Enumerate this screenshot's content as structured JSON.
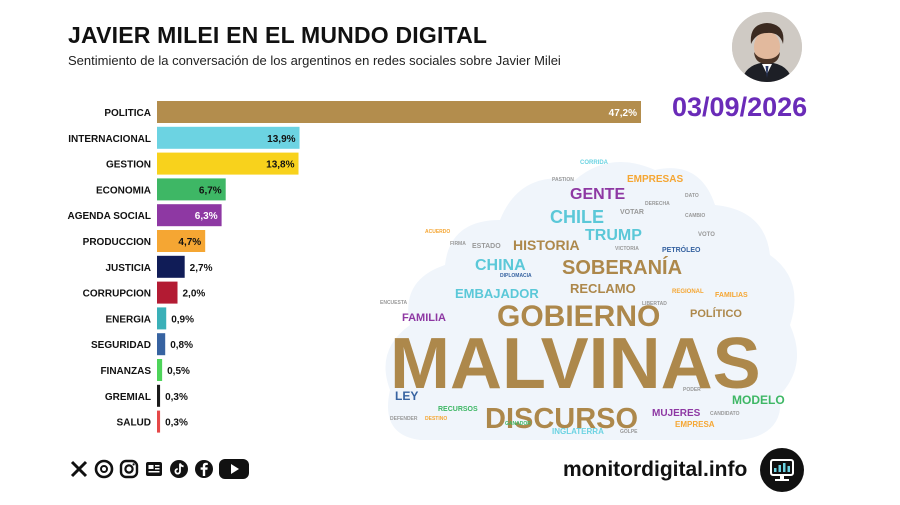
{
  "header": {
    "title": "JAVIER MILEI EN EL MUNDO DIGITAL",
    "subtitle": "Sentimiento de la conversación de los argentinos en redes sociales sobre Javier Milei",
    "date": "03/09/2026"
  },
  "chart_data": {
    "type": "bar",
    "orientation": "horizontal",
    "categories": [
      "POLITICA",
      "INTERNACIONAL",
      "GESTION",
      "ECONOMIA",
      "AGENDA SOCIAL",
      "PRODUCCION",
      "JUSTICIA",
      "CORRUPCION",
      "ENERGIA",
      "SEGURIDAD",
      "FINANZAS",
      "GREMIAL",
      "SALUD"
    ],
    "values": [
      47.2,
      13.9,
      13.8,
      6.7,
      6.3,
      4.7,
      2.7,
      2.0,
      0.9,
      0.8,
      0.5,
      0.3,
      0.3
    ],
    "value_labels": [
      "47,2%",
      "13,9%",
      "13,8%",
      "6,7%",
      "6,3%",
      "4,7%",
      "2,7%",
      "2,0%",
      "0,9%",
      "0,8%",
      "0,5%",
      "0,3%",
      "0,3%"
    ],
    "colors": [
      "#b38d4d",
      "#6cd3e2",
      "#f8d21c",
      "#3eb765",
      "#8e38a3",
      "#f5a633",
      "#101c57",
      "#b31b33",
      "#3ab0b8",
      "#3763a1",
      "#4ed45a",
      "#1a1a1a",
      "#e54848"
    ],
    "value_label_colors": [
      "#ffffff",
      "#111111",
      "#111111",
      "#111111",
      "#ffffff",
      "#111111",
      "#111111",
      "#111111",
      "#111111",
      "#111111",
      "#111111",
      "#111111",
      "#111111"
    ]
  },
  "wordcloud": [
    {
      "text": "MALVINAS",
      "color": "#ad884b",
      "size": 72
    },
    {
      "text": "GOBIERNO",
      "color": "#ad884b",
      "size": 30
    },
    {
      "text": "DISCURSO",
      "color": "#ad884b",
      "size": 29
    },
    {
      "text": "SOBERANÍA",
      "color": "#ad884b",
      "size": 20
    },
    {
      "text": "CHILE",
      "color": "#5bc8d8",
      "size": 18
    },
    {
      "text": "GENTE",
      "color": "#8e38a3",
      "size": 16
    },
    {
      "text": "TRUMP",
      "color": "#5bc8d8",
      "size": 16
    },
    {
      "text": "CHINA",
      "color": "#5bc8d8",
      "size": 16
    },
    {
      "text": "HISTORIA",
      "color": "#ad884b",
      "size": 14
    },
    {
      "text": "RECLAMO",
      "color": "#ad884b",
      "size": 13
    },
    {
      "text": "EMBAJADOR",
      "color": "#5bc8d8",
      "size": 13
    },
    {
      "text": "POLÍTICO",
      "color": "#ad884b",
      "size": 11
    },
    {
      "text": "FAMILIA",
      "color": "#8e38a3",
      "size": 11
    },
    {
      "text": "MODELO",
      "color": "#3eb765",
      "size": 12
    },
    {
      "text": "LEY",
      "color": "#3763a1",
      "size": 12
    },
    {
      "text": "MUJERES",
      "color": "#8e38a3",
      "size": 10
    },
    {
      "text": "EMPRESAS",
      "color": "#f5a633",
      "size": 10
    },
    {
      "text": "INGLATERRA",
      "color": "#6cd3e2",
      "size": 8
    },
    {
      "text": "EMPRESA",
      "color": "#f5a633",
      "size": 8
    },
    {
      "text": "RECURSOS",
      "color": "#3eb765",
      "size": 7
    },
    {
      "text": "PETRÓLEO",
      "color": "#3763a1",
      "size": 7
    },
    {
      "text": "VOTAR",
      "color": "#999999",
      "size": 7
    },
    {
      "text": "ESTADO",
      "color": "#999999",
      "size": 7
    },
    {
      "text": "FAMILIAS",
      "color": "#f5a633",
      "size": 7
    },
    {
      "text": "CORRIDA",
      "color": "#6cd3e2",
      "size": 6
    },
    {
      "text": "PASTION",
      "color": "#999999",
      "size": 5
    },
    {
      "text": "VOTO",
      "color": "#999999",
      "size": 6
    },
    {
      "text": "ENCUESTA",
      "color": "#999999",
      "size": 5
    },
    {
      "text": "PODER",
      "color": "#999999",
      "size": 5
    },
    {
      "text": "DEFENDER",
      "color": "#999999",
      "size": 5
    },
    {
      "text": "REGIONAL",
      "color": "#f5a633",
      "size": 6
    },
    {
      "text": "GOLPE",
      "color": "#999999",
      "size": 5
    },
    {
      "text": "CANDIDATO",
      "color": "#999999",
      "size": 5
    },
    {
      "text": "DERECHA",
      "color": "#999999",
      "size": 5
    },
    {
      "text": "CAMBIO",
      "color": "#999999",
      "size": 5
    },
    {
      "text": "VICTORIA",
      "color": "#999999",
      "size": 5
    },
    {
      "text": "DATO",
      "color": "#999999",
      "size": 5
    },
    {
      "text": "DESTINO",
      "color": "#f5a633",
      "size": 5
    },
    {
      "text": "GANADOR",
      "color": "#3eb765",
      "size": 5
    },
    {
      "text": "LIBERTAD",
      "color": "#999999",
      "size": 5
    },
    {
      "text": "DIPLOMACIA",
      "color": "#3763a1",
      "size": 5
    },
    {
      "text": "FIRMA",
      "color": "#999999",
      "size": 5
    },
    {
      "text": "ACUERDO",
      "color": "#f5a633",
      "size": 5
    }
  ],
  "footer": {
    "site": "monitordigital.info",
    "social_icons": [
      "x-icon",
      "threads-icon",
      "instagram-icon",
      "news-icon",
      "tiktok-icon",
      "facebook-icon",
      "youtube-icon"
    ]
  }
}
